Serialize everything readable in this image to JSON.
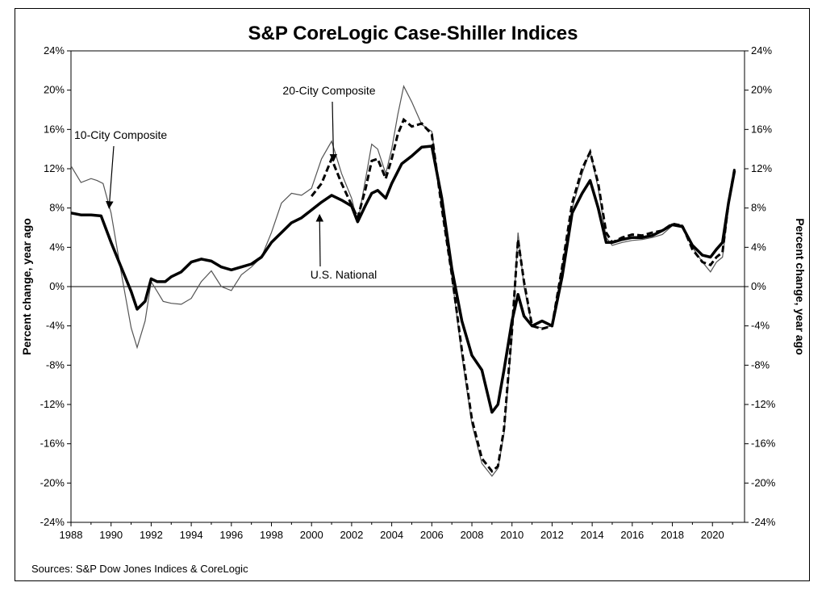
{
  "chart_data": {
    "type": "line",
    "title": "S&P CoreLogic Case-Shiller Indices",
    "ylabel_left": "Percent change, year ago",
    "ylabel_right": "Percent change, year ago",
    "source": "Sources:  S&P Dow Jones Indices & CoreLogic",
    "xlim": [
      1988,
      2021.6
    ],
    "ylim": [
      -24,
      24
    ],
    "x_ticks": [
      "1988",
      "1990",
      "1992",
      "1994",
      "1996",
      "1998",
      "2000",
      "2002",
      "2004",
      "2006",
      "2008",
      "2010",
      "2012",
      "2014",
      "2016",
      "2018",
      "2020"
    ],
    "y_ticks": [
      "-24%",
      "-20%",
      "-16%",
      "-12%",
      "-8%",
      "-4%",
      "0%",
      "4%",
      "8%",
      "12%",
      "16%",
      "20%",
      "24%"
    ],
    "zero_line": true,
    "grid": false,
    "annotations": [
      {
        "text": "10-City Composite",
        "points_to": [
          1989.9,
          8.0
        ]
      },
      {
        "text": "20-City Composite",
        "points_to": [
          2001.1,
          12.8
        ]
      },
      {
        "text": "U.S. National",
        "points_to": [
          2000.4,
          7.3
        ]
      }
    ],
    "series": [
      {
        "name": "10-City Composite",
        "style": "thin",
        "x": [
          1988.0,
          1988.5,
          1989.0,
          1989.3,
          1989.6,
          1990.0,
          1990.5,
          1991.0,
          1991.3,
          1991.7,
          1992.0,
          1992.3,
          1992.6,
          1993.0,
          1993.5,
          1994.0,
          1994.5,
          1995.0,
          1995.5,
          1996.0,
          1996.5,
          1997.0,
          1997.5,
          1998.0,
          1998.5,
          1999.0,
          1999.5,
          2000.0,
          2000.5,
          2001.0,
          2001.5,
          2002.0,
          2002.3,
          2002.7,
          2003.0,
          2003.3,
          2003.7,
          2004.0,
          2004.3,
          2004.6,
          2005.0,
          2005.5,
          2006.0,
          2006.5,
          2007.0,
          2007.5,
          2008.0,
          2008.5,
          2009.0,
          2009.3,
          2009.6,
          2010.0,
          2010.3,
          2010.6,
          2011.0,
          2011.5,
          2012.0,
          2012.5,
          2013.0,
          2013.5,
          2013.9,
          2014.3,
          2014.7,
          2015.0,
          2015.5,
          2016.0,
          2016.5,
          2017.0,
          2017.5,
          2018.0,
          2018.5,
          2019.0,
          2019.5,
          2019.9,
          2020.2,
          2020.5,
          2020.8,
          2021.1
        ],
        "values": [
          12.3,
          10.6,
          11.0,
          10.8,
          10.5,
          7.5,
          1.5,
          -4.2,
          -6.2,
          -3.5,
          0.5,
          -0.5,
          -1.5,
          -1.7,
          -1.8,
          -1.2,
          0.5,
          1.6,
          0.0,
          -0.4,
          1.2,
          2.0,
          3.0,
          5.5,
          8.5,
          9.5,
          9.3,
          10.0,
          13.0,
          14.8,
          11.5,
          9.0,
          6.5,
          11.0,
          14.5,
          14.0,
          11.5,
          14.0,
          17.5,
          20.4,
          18.8,
          16.5,
          15.8,
          8.0,
          1.0,
          -7.0,
          -14.0,
          -18.0,
          -19.3,
          -18.5,
          -15.0,
          -5.0,
          5.5,
          0.0,
          -4.0,
          -4.2,
          -4.0,
          2.0,
          8.0,
          11.5,
          13.8,
          10.0,
          5.0,
          4.2,
          4.5,
          4.7,
          4.8,
          5.0,
          5.3,
          6.2,
          6.3,
          4.0,
          2.5,
          1.5,
          2.5,
          3.0,
          8.0,
          12.0
        ]
      },
      {
        "name": "20-City Composite",
        "style": "dashed",
        "x": [
          2000.0,
          2000.5,
          2001.0,
          2001.5,
          2002.0,
          2002.3,
          2002.7,
          2003.0,
          2003.3,
          2003.7,
          2004.0,
          2004.3,
          2004.6,
          2005.0,
          2005.5,
          2006.0,
          2006.5,
          2007.0,
          2007.5,
          2008.0,
          2008.5,
          2009.0,
          2009.3,
          2009.6,
          2010.0,
          2010.3,
          2010.6,
          2011.0,
          2011.5,
          2012.0,
          2012.5,
          2013.0,
          2013.5,
          2013.9,
          2014.3,
          2014.7,
          2015.0,
          2015.5,
          2016.0,
          2016.5,
          2017.0,
          2017.5,
          2018.0,
          2018.5,
          2019.0,
          2019.5,
          2019.9,
          2020.2,
          2020.5,
          2020.8,
          2021.1
        ],
        "values": [
          9.2,
          10.5,
          13.0,
          10.5,
          8.3,
          7.0,
          10.0,
          12.8,
          13.0,
          11.0,
          13.0,
          15.5,
          17.0,
          16.3,
          16.6,
          15.5,
          8.0,
          1.2,
          -6.5,
          -13.5,
          -17.5,
          -18.8,
          -18.3,
          -14.5,
          -4.5,
          4.8,
          0.5,
          -4.0,
          -4.3,
          -4.0,
          2.0,
          8.5,
          12.0,
          13.7,
          10.5,
          5.5,
          4.5,
          5.0,
          5.3,
          5.2,
          5.5,
          5.7,
          6.4,
          6.2,
          3.8,
          2.5,
          2.2,
          3.0,
          3.5,
          8.5,
          12.0
        ]
      },
      {
        "name": "U.S. National",
        "style": "thick",
        "x": [
          1988.0,
          1988.5,
          1989.0,
          1989.5,
          1990.0,
          1990.5,
          1991.0,
          1991.3,
          1991.7,
          1992.0,
          1992.3,
          1992.7,
          1993.0,
          1993.5,
          1994.0,
          1994.5,
          1995.0,
          1995.5,
          1996.0,
          1996.5,
          1997.0,
          1997.5,
          1998.0,
          1998.5,
          1999.0,
          1999.5,
          2000.0,
          2000.5,
          2001.0,
          2001.5,
          2002.0,
          2002.3,
          2002.7,
          2003.0,
          2003.3,
          2003.7,
          2004.0,
          2004.5,
          2005.0,
          2005.5,
          2006.0,
          2006.5,
          2007.0,
          2007.5,
          2008.0,
          2008.5,
          2009.0,
          2009.3,
          2009.6,
          2010.0,
          2010.3,
          2010.6,
          2011.0,
          2011.5,
          2012.0,
          2012.5,
          2013.0,
          2013.5,
          2013.9,
          2014.3,
          2014.7,
          2015.0,
          2015.5,
          2016.0,
          2016.5,
          2017.0,
          2017.5,
          2018.0,
          2018.5,
          2019.0,
          2019.5,
          2019.9,
          2020.2,
          2020.5,
          2020.8,
          2021.1
        ],
        "values": [
          7.5,
          7.3,
          7.3,
          7.2,
          4.5,
          2.0,
          -0.5,
          -2.3,
          -1.5,
          0.8,
          0.5,
          0.5,
          1.0,
          1.5,
          2.5,
          2.8,
          2.6,
          2.0,
          1.7,
          2.0,
          2.3,
          3.0,
          4.5,
          5.5,
          6.5,
          7.0,
          7.8,
          8.6,
          9.3,
          8.8,
          8.2,
          6.6,
          8.3,
          9.5,
          9.8,
          9.0,
          10.5,
          12.5,
          13.3,
          14.2,
          14.3,
          9.0,
          1.8,
          -3.5,
          -7.0,
          -8.5,
          -12.8,
          -12.0,
          -8.5,
          -3.5,
          -0.8,
          -3.0,
          -4.0,
          -3.5,
          -4.0,
          1.0,
          7.5,
          9.5,
          10.8,
          8.0,
          4.5,
          4.5,
          4.8,
          5.0,
          5.0,
          5.2,
          5.7,
          6.3,
          6.1,
          4.2,
          3.2,
          3.0,
          3.8,
          4.5,
          8.5,
          11.8
        ]
      }
    ]
  }
}
